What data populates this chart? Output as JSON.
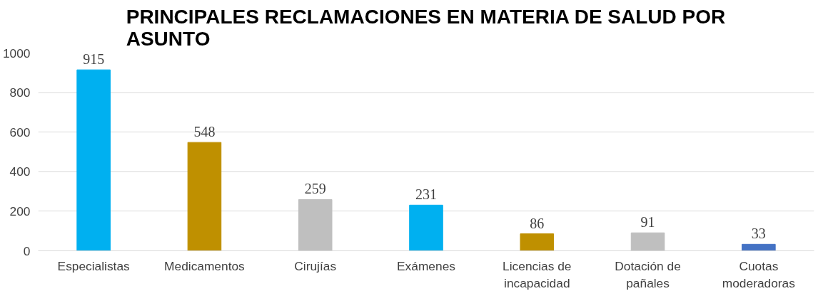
{
  "chart_data": {
    "type": "bar",
    "title": "PRINCIPALES RECLAMACIONES EN MATERIA DE SALUD POR ASUNTO",
    "categories": [
      "Especialistas",
      "Medicamentos",
      "Cirujías",
      "Exámenes",
      "Licencias de incapacidad",
      "Dotación de pañales",
      "Cuotas moderadoras"
    ],
    "values": [
      915,
      548,
      259,
      231,
      86,
      91,
      33
    ],
    "colors": [
      "#00b0f0",
      "#bf9000",
      "#bfbfbf",
      "#00b0f0",
      "#bf9000",
      "#bfbfbf",
      "#4472c4"
    ],
    "ylim": [
      0,
      1000
    ],
    "yticks": [
      0,
      200,
      400,
      600,
      800,
      1000
    ],
    "grid": "y",
    "data_labels": true
  }
}
